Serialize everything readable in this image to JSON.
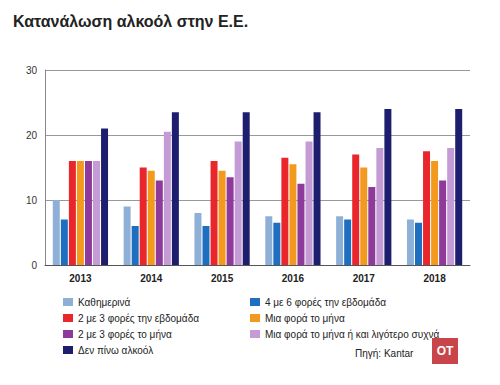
{
  "chart_data": {
    "type": "bar",
    "title": "Κατανάλωση αλκοόλ στην Ε.Ε.",
    "categories": [
      "2013",
      "2014",
      "2015",
      "2016",
      "2017",
      "2018"
    ],
    "series": [
      {
        "name": "Καθημερινά",
        "color": "#8fb0d6",
        "values": [
          10,
          9,
          8,
          7.5,
          7.5,
          7
        ]
      },
      {
        "name": "4 με 6 φορές την εβδομάδα",
        "color": "#1f6fc0",
        "values": [
          7,
          6,
          6,
          6.5,
          7,
          6.5
        ]
      },
      {
        "name": "2 με 3 φορές την εβδομάδα",
        "color": "#e8262c",
        "values": [
          16,
          15,
          16,
          16.5,
          17,
          17.5
        ]
      },
      {
        "name": "Μια φορά το μήνα",
        "color": "#f39a1e",
        "values": [
          16,
          14.5,
          14.5,
          15.5,
          15,
          16
        ]
      },
      {
        "name": "2 με 3 φορές το μήνα",
        "color": "#8e3a9a",
        "values": [
          16,
          13,
          13.5,
          12.5,
          12,
          13
        ]
      },
      {
        "name": "Μια φορά το μήνα ή και λιγότερο συχνά",
        "color": "#c59bd6",
        "values": [
          16,
          20.5,
          19,
          19,
          18,
          18
        ]
      },
      {
        "name": "Δεν πίνω αλκοόλ",
        "color": "#1e1e6e",
        "values": [
          21,
          23.5,
          23.5,
          23.5,
          24,
          24
        ]
      }
    ],
    "ylim": [
      0,
      30
    ],
    "yticks": [
      0,
      10,
      20,
      30
    ],
    "grid": true,
    "annotations": [
      "Πηγή: Kantar",
      "OT"
    ]
  }
}
